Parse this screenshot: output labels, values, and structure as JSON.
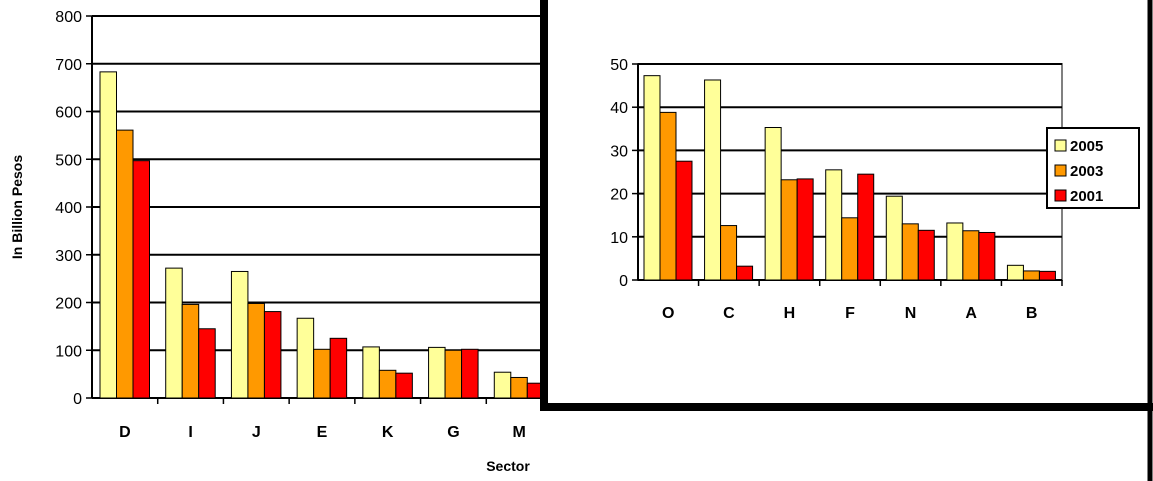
{
  "colors": {
    "2005": "#FFFF99",
    "2003": "#FF9900",
    "2001": "#FF0000",
    "grid": "#000000",
    "inset_plot_border": "#808080"
  },
  "chart_data": [
    {
      "type": "bar",
      "title": "",
      "xlabel": "Sector",
      "ylabel": "In Billion Pesos",
      "ylim": [
        0,
        800
      ],
      "yticks": [
        0,
        100,
        200,
        300,
        400,
        500,
        600,
        700,
        800
      ],
      "categories": [
        "D",
        "I",
        "J",
        "E",
        "K",
        "G",
        "M"
      ],
      "series": [
        {
          "name": "2005",
          "values": [
            683,
            272,
            265,
            167,
            107,
            106,
            54
          ]
        },
        {
          "name": "2003",
          "values": [
            561,
            196,
            198,
            102,
            58,
            100,
            43
          ]
        },
        {
          "name": "2001",
          "values": [
            497,
            145,
            181,
            125,
            52,
            102,
            31
          ]
        }
      ],
      "grid": true
    },
    {
      "type": "bar",
      "title": "",
      "xlabel": "",
      "ylabel": "",
      "ylim": [
        0,
        50
      ],
      "yticks": [
        0,
        10,
        20,
        30,
        40,
        50
      ],
      "categories": [
        "O",
        "C",
        "H",
        "F",
        "N",
        "A",
        "B"
      ],
      "series": [
        {
          "name": "2005",
          "values": [
            47.3,
            46.3,
            35.3,
            25.5,
            19.4,
            13.2,
            3.4
          ]
        },
        {
          "name": "2003",
          "values": [
            38.8,
            12.6,
            23.2,
            14.4,
            13.0,
            11.4,
            2.1
          ]
        },
        {
          "name": "2001",
          "values": [
            27.5,
            3.2,
            23.4,
            24.5,
            11.5,
            11.0,
            2.0
          ]
        }
      ],
      "grid": true,
      "legend": {
        "position": "right",
        "entries": [
          "2005",
          "2003",
          "2001"
        ]
      }
    }
  ]
}
